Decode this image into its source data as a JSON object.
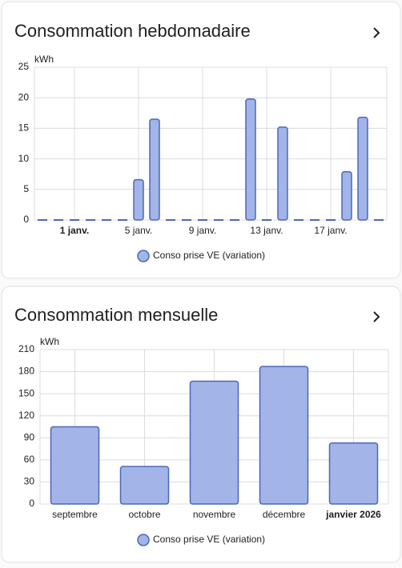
{
  "chart_data": [
    {
      "type": "bar",
      "title": "Consommation hebdomadaire",
      "y_unit": "kWh",
      "categories": [
        null,
        null,
        "1 janv.",
        null,
        null,
        null,
        "5 janv.",
        null,
        null,
        null,
        "9 janv.",
        null,
        null,
        null,
        "13 janv.",
        null,
        null,
        null,
        "17 janv.",
        null,
        null,
        null
      ],
      "series": [
        {
          "name": "Conso prise VE (variation)",
          "color": "#a3b4e8",
          "values": [
            0,
            0,
            0,
            0,
            0,
            0,
            6.6,
            16.5,
            0,
            0,
            0,
            0,
            0,
            19.8,
            0,
            15.2,
            0,
            0,
            0,
            7.9,
            16.8,
            0
          ]
        }
      ],
      "ylim": [
        0,
        25
      ],
      "yticks": [
        0,
        5,
        10,
        15,
        20,
        25
      ],
      "grid": true,
      "bold_tick": "1 janv."
    },
    {
      "type": "bar",
      "title": "Consommation mensuelle",
      "y_unit": "kWh",
      "categories": [
        "septembre",
        "octobre",
        "novembre",
        "décembre",
        "janvier 2026"
      ],
      "series": [
        {
          "name": "Conso prise VE (variation)",
          "color": "#a3b4e8",
          "values": [
            105,
            51,
            167,
            187,
            83
          ]
        }
      ],
      "ylim": [
        0,
        210
      ],
      "yticks": [
        0,
        30,
        60,
        90,
        120,
        150,
        180,
        210
      ],
      "grid": true,
      "bold_tick": "janvier 2026"
    }
  ]
}
